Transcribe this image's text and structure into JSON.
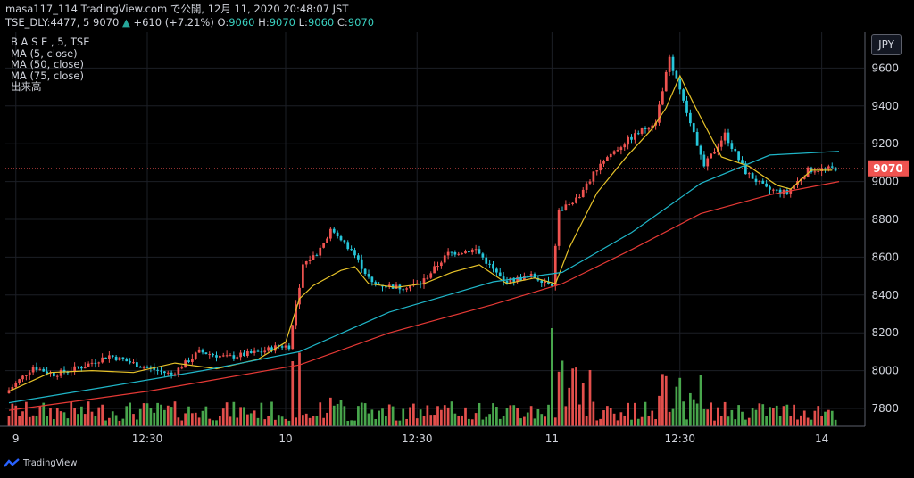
{
  "header": {
    "line1": "masa117_114 TradingView.com で公開, 12月 11, 2020 20:48:07 JST",
    "symbol": "TSE_DLY:4477, 5",
    "last": "9070",
    "change": "+610 (+7.21%)",
    "o_label": "O:",
    "o": "9060",
    "h_label": "H:",
    "h": "9070",
    "l_label": "L:",
    "l": "9060",
    "c_label": "C:",
    "c": "9070"
  },
  "legend": [
    "B A S E , 5, TSE",
    "MA (5, close)",
    "MA (50, close)",
    "MA (75, close)",
    "出来高"
  ],
  "currency_button": "JPY",
  "brand": "TradingView",
  "colors": {
    "up": "#ef5350",
    "down": "#26c6da",
    "vol_up": "#ef5350",
    "vol_down": "#4caf50",
    "ma5": "#e6c229",
    "ma50": "#1fb5c7",
    "ma75": "#e53935"
  },
  "chart_data": {
    "type": "candlestick",
    "ylim": [
      7700,
      9700
    ],
    "y_ticks": [
      7800,
      8000,
      8200,
      8400,
      8600,
      8800,
      9000,
      9200,
      9400,
      9600
    ],
    "x_tick_labels": [
      "9",
      "12:30",
      "10",
      "12:30",
      "11",
      "12:30",
      "14"
    ],
    "last_price_label": "9070",
    "series": [
      {
        "name": "MA (5, close)",
        "points": [
          [
            0,
            7890
          ],
          [
            12,
            7990
          ],
          [
            24,
            8000
          ],
          [
            36,
            7990
          ],
          [
            48,
            8040
          ],
          [
            60,
            8010
          ],
          [
            72,
            8060
          ],
          [
            80,
            8150
          ],
          [
            84,
            8380
          ],
          [
            88,
            8450
          ],
          [
            96,
            8530
          ],
          [
            100,
            8550
          ],
          [
            104,
            8460
          ],
          [
            112,
            8440
          ],
          [
            120,
            8460
          ],
          [
            128,
            8520
          ],
          [
            136,
            8560
          ],
          [
            144,
            8460
          ],
          [
            152,
            8490
          ],
          [
            158,
            8460
          ],
          [
            162,
            8650
          ],
          [
            170,
            8940
          ],
          [
            178,
            9120
          ],
          [
            186,
            9280
          ],
          [
            190,
            9390
          ],
          [
            194,
            9560
          ],
          [
            198,
            9410
          ],
          [
            206,
            9130
          ],
          [
            214,
            9080
          ],
          [
            222,
            8980
          ],
          [
            226,
            8960
          ],
          [
            232,
            9060
          ],
          [
            238,
            9060
          ]
        ]
      },
      {
        "name": "MA (50, close)",
        "points": [
          [
            0,
            7830
          ],
          [
            30,
            7920
          ],
          [
            56,
            8000
          ],
          [
            84,
            8100
          ],
          [
            110,
            8310
          ],
          [
            140,
            8470
          ],
          [
            160,
            8520
          ],
          [
            180,
            8730
          ],
          [
            200,
            8990
          ],
          [
            220,
            9140
          ],
          [
            240,
            9160
          ]
        ]
      },
      {
        "name": "MA (75, close)",
        "points": [
          [
            0,
            7790
          ],
          [
            40,
            7890
          ],
          [
            84,
            8030
          ],
          [
            110,
            8200
          ],
          [
            140,
            8350
          ],
          [
            160,
            8460
          ],
          [
            180,
            8640
          ],
          [
            200,
            8830
          ],
          [
            220,
            8930
          ],
          [
            240,
            9000
          ]
        ]
      }
    ]
  }
}
